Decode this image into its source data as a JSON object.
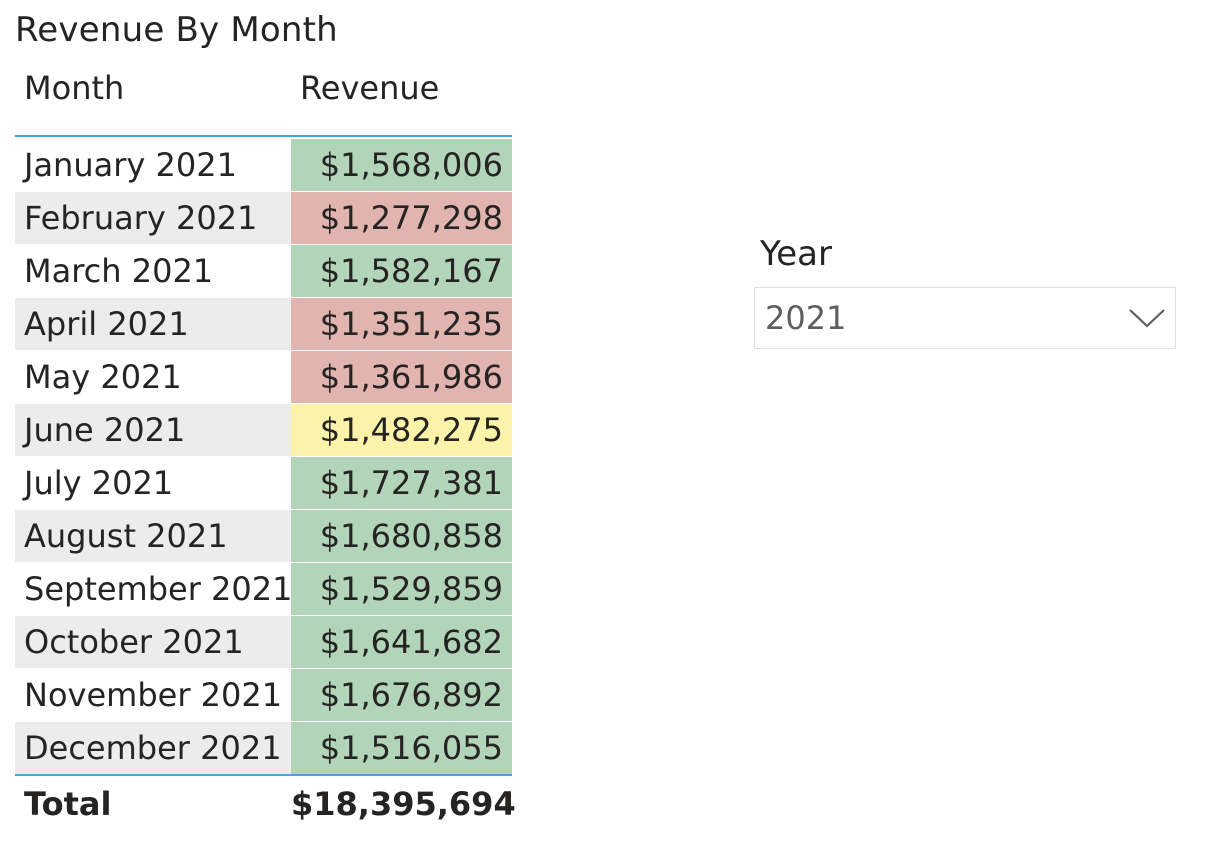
{
  "visual": {
    "title": "Revenue By Month",
    "columns": {
      "month": "Month",
      "revenue": "Revenue"
    },
    "rows": [
      {
        "month": "January 2021",
        "revenue": "$1,568,006",
        "color": "#b2d4b8"
      },
      {
        "month": "February 2021",
        "revenue": "$1,277,298",
        "color": "#e2b4b0"
      },
      {
        "month": "March 2021",
        "revenue": "$1,582,167",
        "color": "#b2d4b8"
      },
      {
        "month": "April 2021",
        "revenue": "$1,351,235",
        "color": "#e2b4b0"
      },
      {
        "month": "May 2021",
        "revenue": "$1,361,986",
        "color": "#e2b4b0"
      },
      {
        "month": "June 2021",
        "revenue": "$1,482,275",
        "color": "#fbf3aa"
      },
      {
        "month": "July 2021",
        "revenue": "$1,727,381",
        "color": "#b2d4b8"
      },
      {
        "month": "August 2021",
        "revenue": "$1,680,858",
        "color": "#b2d4b8"
      },
      {
        "month": "September 2021",
        "revenue": "$1,529,859",
        "color": "#b2d4b8"
      },
      {
        "month": "October 2021",
        "revenue": "$1,641,682",
        "color": "#b2d4b8"
      },
      {
        "month": "November 2021",
        "revenue": "$1,676,892",
        "color": "#b2d4b8"
      },
      {
        "month": "December 2021",
        "revenue": "$1,516,055",
        "color": "#b2d4b8"
      }
    ],
    "total": {
      "label": "Total",
      "value": "$18,395,694"
    },
    "header_rule_color": "#4aa3df"
  },
  "slicer": {
    "title": "Year",
    "selected": "2021",
    "icon": "chevron-down-icon"
  }
}
